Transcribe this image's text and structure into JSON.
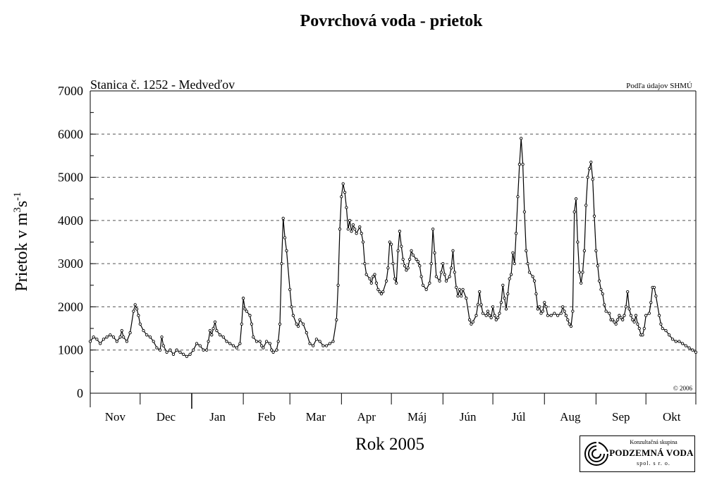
{
  "chart_data": {
    "type": "line",
    "title": "Povrchová voda - prietok",
    "station_label": "Stanica č. 1252 - Medveďov",
    "source_note": "Podľa údajov SHMÚ",
    "copyright": "© 2006",
    "xlabel": "Rok 2005",
    "ylabel_main": "Prietok v m",
    "ylabel_sup1": "3",
    "ylabel_mid": "s",
    "ylabel_sup2": "-1",
    "ylim": [
      0,
      7000
    ],
    "yticks": [
      "0",
      "1000",
      "2000",
      "3000",
      "4000",
      "5000",
      "6000",
      "7000"
    ],
    "grid": "horizontal dashed",
    "months": [
      "Nov",
      "Dec",
      "Jan",
      "Feb",
      "Mar",
      "Apr",
      "Máj",
      "Jún",
      "Júl",
      "Aug",
      "Sep",
      "Okt"
    ],
    "line_color": "#000000",
    "series": [
      {
        "points": [
          [
            0,
            1200
          ],
          [
            2,
            1300
          ],
          [
            4,
            1250
          ],
          [
            6,
            1150
          ],
          [
            8,
            1250
          ],
          [
            10,
            1300
          ],
          [
            12,
            1350
          ],
          [
            14,
            1300
          ],
          [
            16,
            1200
          ],
          [
            18,
            1300
          ],
          [
            19,
            1450
          ],
          [
            20,
            1300
          ],
          [
            22,
            1200
          ],
          [
            24,
            1400
          ],
          [
            26,
            1900
          ],
          [
            27,
            2050
          ],
          [
            28,
            1950
          ],
          [
            29,
            1800
          ],
          [
            30,
            1600
          ],
          [
            32,
            1450
          ],
          [
            34,
            1350
          ],
          [
            36,
            1300
          ],
          [
            38,
            1200
          ],
          [
            40,
            1050
          ],
          [
            42,
            1000
          ],
          [
            43,
            1300
          ],
          [
            44,
            1100
          ],
          [
            46,
            950
          ],
          [
            48,
            1000
          ],
          [
            50,
            900
          ],
          [
            52,
            1000
          ],
          [
            54,
            950
          ],
          [
            56,
            900
          ],
          [
            58,
            850
          ],
          [
            60,
            900
          ],
          [
            62,
            1000
          ],
          [
            64,
            1150
          ],
          [
            66,
            1100
          ],
          [
            68,
            1000
          ],
          [
            70,
            1000
          ],
          [
            71,
            1200
          ],
          [
            72,
            1450
          ],
          [
            73,
            1350
          ],
          [
            74,
            1500
          ],
          [
            75,
            1650
          ],
          [
            76,
            1450
          ],
          [
            78,
            1350
          ],
          [
            80,
            1300
          ],
          [
            82,
            1200
          ],
          [
            84,
            1150
          ],
          [
            86,
            1100
          ],
          [
            88,
            1050
          ],
          [
            90,
            1150
          ],
          [
            91,
            1600
          ],
          [
            92,
            2200
          ],
          [
            93,
            1950
          ],
          [
            94,
            1900
          ],
          [
            96,
            1800
          ],
          [
            97,
            1600
          ],
          [
            98,
            1300
          ],
          [
            100,
            1200
          ],
          [
            102,
            1200
          ],
          [
            103,
            1100
          ],
          [
            104,
            1050
          ],
          [
            106,
            1200
          ],
          [
            108,
            1150
          ],
          [
            109,
            1000
          ],
          [
            110,
            950
          ],
          [
            112,
            1000
          ],
          [
            113,
            1200
          ],
          [
            114,
            1600
          ],
          [
            115,
            3000
          ],
          [
            116,
            4050
          ],
          [
            117,
            3600
          ],
          [
            118,
            3300
          ],
          [
            120,
            2400
          ],
          [
            121,
            2000
          ],
          [
            122,
            1800
          ],
          [
            124,
            1600
          ],
          [
            125,
            1550
          ],
          [
            126,
            1700
          ],
          [
            128,
            1600
          ],
          [
            130,
            1400
          ],
          [
            132,
            1150
          ],
          [
            134,
            1100
          ],
          [
            136,
            1250
          ],
          [
            138,
            1200
          ],
          [
            140,
            1100
          ],
          [
            142,
            1100
          ],
          [
            144,
            1150
          ],
          [
            146,
            1200
          ],
          [
            148,
            1700
          ],
          [
            149,
            2500
          ],
          [
            150,
            3800
          ],
          [
            151,
            4550
          ],
          [
            152,
            4850
          ],
          [
            153,
            4650
          ],
          [
            154,
            4300
          ],
          [
            155,
            3800
          ],
          [
            156,
            4000
          ],
          [
            157,
            3750
          ],
          [
            158,
            3900
          ],
          [
            159,
            3800
          ],
          [
            160,
            3700
          ],
          [
            162,
            3850
          ],
          [
            163,
            3700
          ],
          [
            164,
            3500
          ],
          [
            165,
            3000
          ],
          [
            166,
            2750
          ],
          [
            168,
            2650
          ],
          [
            169,
            2550
          ],
          [
            170,
            2700
          ],
          [
            171,
            2750
          ],
          [
            172,
            2550
          ],
          [
            173,
            2400
          ],
          [
            174,
            2350
          ],
          [
            175,
            2300
          ],
          [
            176,
            2350
          ],
          [
            178,
            2600
          ],
          [
            179,
            2900
          ],
          [
            180,
            3500
          ],
          [
            181,
            3450
          ],
          [
            182,
            3000
          ],
          [
            183,
            2650
          ],
          [
            184,
            2550
          ],
          [
            185,
            3300
          ],
          [
            186,
            3750
          ],
          [
            187,
            3400
          ],
          [
            188,
            3100
          ],
          [
            189,
            2950
          ],
          [
            190,
            2850
          ],
          [
            191,
            2900
          ],
          [
            192,
            3100
          ],
          [
            193,
            3300
          ],
          [
            194,
            3200
          ],
          [
            196,
            3100
          ],
          [
            197,
            3050
          ],
          [
            198,
            2950
          ],
          [
            199,
            2700
          ],
          [
            200,
            2500
          ],
          [
            202,
            2400
          ],
          [
            204,
            2550
          ],
          [
            205,
            3000
          ],
          [
            206,
            3800
          ],
          [
            207,
            3250
          ],
          [
            208,
            2700
          ],
          [
            210,
            2600
          ],
          [
            211,
            2800
          ],
          [
            212,
            3000
          ],
          [
            213,
            2750
          ],
          [
            214,
            2600
          ],
          [
            216,
            2700
          ],
          [
            217,
            2900
          ],
          [
            218,
            3300
          ],
          [
            219,
            2800
          ],
          [
            220,
            2450
          ],
          [
            221,
            2250
          ],
          [
            222,
            2400
          ],
          [
            223,
            2250
          ],
          [
            224,
            2400
          ],
          [
            226,
            2200
          ],
          [
            228,
            1700
          ],
          [
            229,
            1600
          ],
          [
            230,
            1650
          ],
          [
            232,
            1800
          ],
          [
            233,
            2050
          ],
          [
            234,
            2350
          ],
          [
            235,
            2050
          ],
          [
            236,
            1850
          ],
          [
            238,
            1800
          ],
          [
            239,
            1900
          ],
          [
            240,
            1800
          ],
          [
            241,
            1750
          ],
          [
            242,
            2000
          ],
          [
            243,
            1800
          ],
          [
            244,
            1700
          ],
          [
            245,
            1750
          ],
          [
            246,
            1850
          ],
          [
            247,
            2100
          ],
          [
            248,
            2500
          ],
          [
            249,
            2200
          ],
          [
            250,
            1950
          ],
          [
            251,
            2300
          ],
          [
            252,
            2650
          ],
          [
            253,
            2750
          ],
          [
            254,
            3250
          ],
          [
            255,
            3000
          ],
          [
            256,
            3700
          ],
          [
            257,
            4550
          ],
          [
            258,
            5300
          ],
          [
            259,
            5900
          ],
          [
            260,
            5300
          ],
          [
            261,
            4200
          ],
          [
            262,
            3300
          ],
          [
            263,
            3000
          ],
          [
            264,
            2800
          ],
          [
            266,
            2700
          ],
          [
            267,
            2600
          ],
          [
            268,
            2300
          ],
          [
            269,
            1950
          ],
          [
            270,
            2000
          ],
          [
            271,
            1850
          ],
          [
            272,
            1900
          ],
          [
            273,
            2100
          ],
          [
            274,
            2000
          ],
          [
            275,
            1800
          ],
          [
            277,
            1800
          ],
          [
            279,
            1850
          ],
          [
            281,
            1800
          ],
          [
            283,
            1850
          ],
          [
            284,
            2000
          ],
          [
            285,
            1900
          ],
          [
            286,
            1800
          ],
          [
            287,
            1700
          ],
          [
            288,
            1600
          ],
          [
            289,
            1550
          ],
          [
            290,
            1900
          ],
          [
            291,
            4200
          ],
          [
            292,
            4500
          ],
          [
            293,
            3500
          ],
          [
            294,
            2800
          ],
          [
            295,
            2550
          ],
          [
            296,
            2800
          ],
          [
            297,
            3300
          ],
          [
            298,
            4350
          ],
          [
            299,
            5000
          ],
          [
            300,
            5200
          ],
          [
            301,
            5350
          ],
          [
            302,
            4950
          ],
          [
            303,
            4100
          ],
          [
            304,
            3300
          ],
          [
            305,
            2950
          ],
          [
            306,
            2600
          ],
          [
            307,
            2400
          ],
          [
            308,
            2300
          ],
          [
            309,
            2050
          ],
          [
            310,
            1900
          ],
          [
            312,
            1850
          ],
          [
            313,
            1700
          ],
          [
            314,
            1700
          ],
          [
            315,
            1650
          ],
          [
            316,
            1600
          ],
          [
            317,
            1700
          ],
          [
            318,
            1800
          ],
          [
            319,
            1750
          ],
          [
            320,
            1700
          ],
          [
            321,
            1800
          ],
          [
            322,
            2000
          ],
          [
            323,
            2350
          ],
          [
            324,
            1950
          ],
          [
            325,
            1800
          ],
          [
            326,
            1700
          ],
          [
            327,
            1650
          ],
          [
            328,
            1800
          ],
          [
            329,
            1600
          ],
          [
            330,
            1500
          ],
          [
            331,
            1350
          ],
          [
            332,
            1350
          ],
          [
            333,
            1500
          ],
          [
            334,
            1800
          ],
          [
            336,
            1850
          ],
          [
            337,
            2100
          ],
          [
            338,
            2450
          ],
          [
            339,
            2450
          ],
          [
            340,
            2250
          ],
          [
            342,
            1800
          ],
          [
            343,
            1600
          ],
          [
            344,
            1500
          ],
          [
            346,
            1450
          ],
          [
            348,
            1350
          ],
          [
            350,
            1250
          ],
          [
            352,
            1200
          ],
          [
            354,
            1200
          ],
          [
            356,
            1150
          ],
          [
            358,
            1100
          ],
          [
            360,
            1050
          ],
          [
            362,
            1000
          ],
          [
            364,
            950
          ]
        ]
      }
    ]
  },
  "logo": {
    "line1": "Konzultačná skupina",
    "line2": "PODZEMNÁ VODA",
    "line3": "spol. s r. o."
  }
}
